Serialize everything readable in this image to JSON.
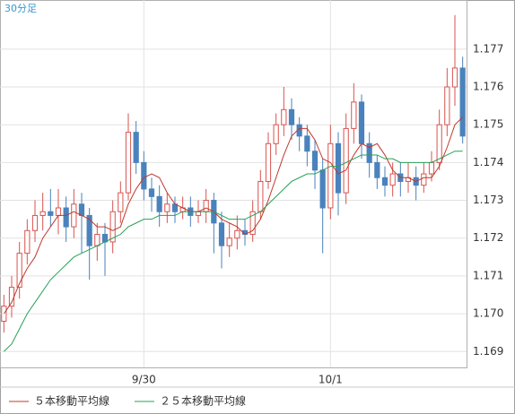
{
  "chart_data": {
    "type": "candlestick",
    "title": "30分足",
    "categories": [
      null,
      null,
      null,
      null,
      null,
      null,
      null,
      null,
      null,
      null,
      null,
      null,
      null,
      null,
      null,
      null,
      null,
      null,
      "9/30",
      null,
      null,
      null,
      null,
      null,
      null,
      null,
      null,
      null,
      null,
      null,
      null,
      null,
      null,
      null,
      null,
      null,
      null,
      null,
      null,
      null,
      null,
      null,
      "10/1",
      null,
      null,
      null,
      null,
      null,
      null,
      null,
      null,
      null,
      null,
      null,
      null,
      null,
      null,
      null,
      null,
      null
    ],
    "open": [
      1.1698,
      1.1702,
      1.1707,
      1.1716,
      1.1722,
      1.1726,
      1.1727,
      1.1726,
      1.1728,
      1.1723,
      1.1729,
      1.1726,
      1.1718,
      1.1721,
      1.1719,
      1.1727,
      1.1732,
      1.1748,
      1.174,
      1.1733,
      1.1731,
      1.1727,
      1.1729,
      1.1727,
      1.1728,
      1.1726,
      1.1727,
      1.173,
      1.1724,
      1.1718,
      1.172,
      1.1722,
      1.1721,
      1.1727,
      1.1735,
      1.1745,
      1.175,
      1.1754,
      1.175,
      1.1747,
      1.1743,
      1.1738,
      1.1728,
      1.1745,
      1.1732,
      1.1749,
      1.1756,
      1.1745,
      1.174,
      1.1736,
      1.1734,
      1.1737,
      1.1735,
      1.1736,
      1.1734,
      1.1737,
      1.174,
      1.175,
      1.176,
      1.1765
    ],
    "high": [
      1.1705,
      1.171,
      1.1719,
      1.1725,
      1.173,
      1.1732,
      1.1733,
      1.1733,
      1.1731,
      1.1733,
      1.1732,
      1.1728,
      1.1724,
      1.1724,
      1.173,
      1.1735,
      1.1753,
      1.1751,
      1.1743,
      1.1736,
      1.1734,
      1.1732,
      1.1731,
      1.1731,
      1.1731,
      1.173,
      1.1733,
      1.1732,
      1.1727,
      1.1724,
      1.1726,
      1.1725,
      1.173,
      1.1738,
      1.1748,
      1.1753,
      1.176,
      1.1757,
      1.1752,
      1.175,
      1.1746,
      1.1741,
      1.175,
      1.1748,
      1.1753,
      1.1761,
      1.1758,
      1.1748,
      1.1742,
      1.1739,
      1.174,
      1.174,
      1.174,
      1.1739,
      1.174,
      1.1743,
      1.1754,
      1.1765,
      1.1779,
      1.1768
    ],
    "low": [
      1.1695,
      1.1699,
      1.1704,
      1.1713,
      1.1719,
      1.1722,
      1.1723,
      1.1721,
      1.1719,
      1.172,
      1.1716,
      1.1709,
      1.1714,
      1.171,
      1.1716,
      1.1724,
      1.173,
      1.1737,
      1.173,
      1.1727,
      1.1723,
      1.1724,
      1.1724,
      1.1725,
      1.1723,
      1.1724,
      1.1724,
      1.1716,
      1.1712,
      1.1715,
      1.1717,
      1.1718,
      1.1719,
      1.1725,
      1.1733,
      1.1742,
      1.1747,
      1.1746,
      1.1743,
      1.1739,
      1.1733,
      1.1716,
      1.1725,
      1.1726,
      1.1729,
      1.1745,
      1.1741,
      1.1736,
      1.1733,
      1.1731,
      1.1731,
      1.1731,
      1.1732,
      1.173,
      1.1732,
      1.1735,
      1.1738,
      1.1747,
      1.1755,
      1.1745
    ],
    "close": [
      1.1702,
      1.1707,
      1.1716,
      1.1722,
      1.1726,
      1.1727,
      1.1726,
      1.1728,
      1.1723,
      1.1729,
      1.1726,
      1.1718,
      1.1721,
      1.1719,
      1.1727,
      1.1732,
      1.1748,
      1.174,
      1.1733,
      1.1731,
      1.1727,
      1.1729,
      1.1727,
      1.1728,
      1.1726,
      1.1727,
      1.173,
      1.1724,
      1.1718,
      1.172,
      1.1722,
      1.1721,
      1.1727,
      1.1735,
      1.1745,
      1.175,
      1.1754,
      1.175,
      1.1747,
      1.1743,
      1.1738,
      1.1728,
      1.1745,
      1.1732,
      1.1749,
      1.1756,
      1.1745,
      1.174,
      1.1736,
      1.1734,
      1.1737,
      1.1735,
      1.1736,
      1.1734,
      1.1737,
      1.174,
      1.175,
      1.176,
      1.1765,
      1.1747
    ],
    "up_color": "#d9534f",
    "down_color": "#4a82bd",
    "series": [
      {
        "name": "５本移動平均線",
        "color": "#c0392b",
        "values": [
          1.17,
          1.1703,
          1.1708,
          1.1712,
          1.1715,
          1.172,
          1.1723,
          1.1726,
          1.1726,
          1.1727,
          1.1726,
          1.1725,
          1.1723,
          1.1723,
          1.1722,
          1.1723,
          1.1729,
          1.1733,
          1.1736,
          1.1737,
          1.1736,
          1.1732,
          1.1729,
          1.1728,
          1.1727,
          1.1727,
          1.1728,
          1.1727,
          1.1725,
          1.1724,
          1.1723,
          1.1721,
          1.1722,
          1.1725,
          1.173,
          1.1736,
          1.1742,
          1.1747,
          1.1749,
          1.1749,
          1.1746,
          1.1741,
          1.174,
          1.1737,
          1.1738,
          1.1742,
          1.1745,
          1.1744,
          1.1745,
          1.1742,
          1.1738,
          1.1736,
          1.1736,
          1.1735,
          1.1736,
          1.1736,
          1.1739,
          1.1744,
          1.175,
          1.1752
        ]
      },
      {
        "name": "２５本移動平均線",
        "color": "#27a05a",
        "values": [
          1.169,
          1.1692,
          1.1696,
          1.17,
          1.1703,
          1.1706,
          1.1709,
          1.1711,
          1.1713,
          1.1715,
          1.1716,
          1.1717,
          1.1718,
          1.1719,
          1.172,
          1.1721,
          1.1723,
          1.1724,
          1.1725,
          1.1725,
          1.1726,
          1.1726,
          1.1726,
          1.1727,
          1.1727,
          1.1727,
          1.1727,
          1.1727,
          1.1726,
          1.1725,
          1.1725,
          1.1725,
          1.1726,
          1.1727,
          1.1729,
          1.1731,
          1.1733,
          1.1735,
          1.1736,
          1.1737,
          1.1737,
          1.1738,
          1.1739,
          1.1739,
          1.174,
          1.1741,
          1.1742,
          1.1742,
          1.1742,
          1.1741,
          1.1741,
          1.174,
          1.174,
          1.174,
          1.174,
          1.174,
          1.1741,
          1.1742,
          1.1743,
          1.1743
        ]
      }
    ],
    "ylim": [
      1.16858,
      1.1783
    ],
    "yticks": [
      1.169,
      {
        "value": 1.17,
        "label": "1.170"
      },
      1.171,
      1.172,
      1.173,
      1.174,
      1.175,
      1.176,
      1.177
    ],
    "grid": true
  }
}
